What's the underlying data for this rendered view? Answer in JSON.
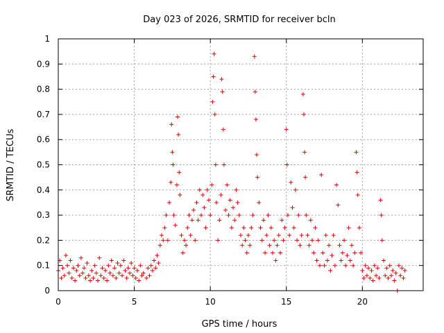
{
  "chart_data": {
    "type": "scatter",
    "title": "Day 023 of 2026, SRMTID for receiver bcln",
    "xlabel": "GPS time / hours",
    "ylabel": "SRMTID / TECUs",
    "xlim": [
      0,
      24
    ],
    "ylim": [
      0,
      1
    ],
    "xticks": [
      0,
      5,
      10,
      15,
      20
    ],
    "yticks": [
      0,
      0.1,
      0.2,
      0.3,
      0.4,
      0.5,
      0.6,
      0.7,
      0.8,
      0.9,
      1
    ],
    "ytick_labels": [
      "0",
      "0.1",
      "0.2",
      "0.3",
      "0.4",
      "0.5",
      "0.6",
      "0.7",
      "0.8",
      "0.9",
      "1"
    ],
    "grid": true,
    "marker": "+",
    "color": "#e00000",
    "series": [
      {
        "name": "SRMTID",
        "points": [
          [
            0.0,
            0.08
          ],
          [
            0.1,
            0.12
          ],
          [
            0.2,
            0.05
          ],
          [
            0.3,
            0.09
          ],
          [
            0.4,
            0.06
          ],
          [
            0.5,
            0.14
          ],
          [
            0.6,
            0.1
          ],
          [
            0.7,
            0.07
          ],
          [
            0.8,
            0.12
          ],
          [
            0.9,
            0.05
          ],
          [
            1.0,
            0.09
          ],
          [
            1.1,
            0.04
          ],
          [
            1.2,
            0.08
          ],
          [
            1.3,
            0.1
          ],
          [
            1.4,
            0.06
          ],
          [
            1.5,
            0.13
          ],
          [
            1.6,
            0.07
          ],
          [
            1.7,
            0.09
          ],
          [
            1.8,
            0.05
          ],
          [
            1.9,
            0.11
          ],
          [
            2.0,
            0.06
          ],
          [
            2.1,
            0.04
          ],
          [
            2.2,
            0.08
          ],
          [
            2.3,
            0.05
          ],
          [
            2.4,
            0.1
          ],
          [
            2.5,
            0.07
          ],
          [
            2.6,
            0.04
          ],
          [
            2.7,
            0.13
          ],
          [
            2.8,
            0.06
          ],
          [
            2.9,
            0.09
          ],
          [
            3.0,
            0.05
          ],
          [
            3.1,
            0.08
          ],
          [
            3.2,
            0.04
          ],
          [
            3.3,
            0.1
          ],
          [
            3.4,
            0.07
          ],
          [
            3.5,
            0.12
          ],
          [
            3.6,
            0.06
          ],
          [
            3.7,
            0.09
          ],
          [
            3.8,
            0.05
          ],
          [
            3.9,
            0.11
          ],
          [
            4.0,
            0.07
          ],
          [
            4.1,
            0.1
          ],
          [
            4.2,
            0.06
          ],
          [
            4.3,
            0.12
          ],
          [
            4.4,
            0.08
          ],
          [
            4.5,
            0.05
          ],
          [
            4.6,
            0.09
          ],
          [
            4.7,
            0.07
          ],
          [
            4.8,
            0.11
          ],
          [
            4.9,
            0.06
          ],
          [
            5.0,
            0.09
          ],
          [
            5.1,
            0.05
          ],
          [
            5.2,
            0.08
          ],
          [
            5.3,
            0.04
          ],
          [
            5.4,
            0.1
          ],
          [
            5.5,
            0.06
          ],
          [
            5.6,
            0.07
          ],
          [
            5.8,
            0.05
          ],
          [
            5.9,
            0.09
          ],
          [
            6.0,
            0.06
          ],
          [
            6.1,
            0.1
          ],
          [
            6.2,
            0.08
          ],
          [
            6.3,
            0.12
          ],
          [
            6.4,
            0.09
          ],
          [
            6.5,
            0.14
          ],
          [
            6.6,
            0.11
          ],
          [
            6.7,
            0.18
          ],
          [
            6.8,
            0.22
          ],
          [
            6.9,
            0.2
          ],
          [
            7.0,
            0.25
          ],
          [
            7.1,
            0.3
          ],
          [
            7.2,
            0.2
          ],
          [
            7.3,
            0.35
          ],
          [
            7.4,
            0.43
          ],
          [
            7.45,
            0.66
          ],
          [
            7.5,
            0.55
          ],
          [
            7.55,
            0.5
          ],
          [
            7.6,
            0.3
          ],
          [
            7.7,
            0.26
          ],
          [
            7.8,
            0.42
          ],
          [
            7.85,
            0.69
          ],
          [
            7.9,
            0.62
          ],
          [
            7.95,
            0.47
          ],
          [
            8.0,
            0.38
          ],
          [
            8.1,
            0.22
          ],
          [
            8.2,
            0.15
          ],
          [
            8.3,
            0.2
          ],
          [
            8.4,
            0.18
          ],
          [
            8.5,
            0.25
          ],
          [
            8.6,
            0.3
          ],
          [
            8.7,
            0.22
          ],
          [
            8.8,
            0.28
          ],
          [
            8.9,
            0.32
          ],
          [
            9.0,
            0.2
          ],
          [
            9.1,
            0.35
          ],
          [
            9.2,
            0.28
          ],
          [
            9.3,
            0.4
          ],
          [
            9.4,
            0.3
          ],
          [
            9.5,
            0.38
          ],
          [
            9.6,
            0.33
          ],
          [
            9.7,
            0.25
          ],
          [
            9.8,
            0.4
          ],
          [
            9.9,
            0.36
          ],
          [
            10.0,
            0.3
          ],
          [
            10.1,
            0.42
          ],
          [
            10.15,
            0.75
          ],
          [
            10.2,
            0.85
          ],
          [
            10.25,
            0.94
          ],
          [
            10.3,
            0.7
          ],
          [
            10.35,
            0.5
          ],
          [
            10.4,
            0.35
          ],
          [
            10.5,
            0.2
          ],
          [
            10.6,
            0.28
          ],
          [
            10.7,
            0.38
          ],
          [
            10.75,
            0.84
          ],
          [
            10.8,
            0.79
          ],
          [
            10.85,
            0.64
          ],
          [
            10.9,
            0.5
          ],
          [
            11.0,
            0.32
          ],
          [
            11.1,
            0.42
          ],
          [
            11.2,
            0.3
          ],
          [
            11.3,
            0.36
          ],
          [
            11.4,
            0.25
          ],
          [
            11.5,
            0.33
          ],
          [
            11.6,
            0.28
          ],
          [
            11.7,
            0.4
          ],
          [
            11.8,
            0.35
          ],
          [
            11.9,
            0.3
          ],
          [
            12.0,
            0.22
          ],
          [
            12.1,
            0.18
          ],
          [
            12.2,
            0.25
          ],
          [
            12.3,
            0.2
          ],
          [
            12.4,
            0.15
          ],
          [
            12.5,
            0.22
          ],
          [
            12.6,
            0.18
          ],
          [
            12.7,
            0.25
          ],
          [
            12.8,
            0.3
          ],
          [
            12.9,
            0.93
          ],
          [
            12.95,
            0.79
          ],
          [
            13.0,
            0.68
          ],
          [
            13.05,
            0.54
          ],
          [
            13.1,
            0.45
          ],
          [
            13.2,
            0.35
          ],
          [
            13.3,
            0.25
          ],
          [
            13.4,
            0.2
          ],
          [
            13.5,
            0.28
          ],
          [
            13.6,
            0.15
          ],
          [
            13.7,
            0.22
          ],
          [
            13.8,
            0.3
          ],
          [
            13.9,
            0.18
          ],
          [
            14.0,
            0.25
          ],
          [
            14.1,
            0.15
          ],
          [
            14.2,
            0.2
          ],
          [
            14.3,
            0.12
          ],
          [
            14.4,
            0.18
          ],
          [
            14.5,
            0.22
          ],
          [
            14.6,
            0.15
          ],
          [
            14.7,
            0.28
          ],
          [
            14.8,
            0.2
          ],
          [
            14.9,
            0.25
          ],
          [
            15.0,
            0.64
          ],
          [
            15.05,
            0.5
          ],
          [
            15.1,
            0.3
          ],
          [
            15.2,
            0.22
          ],
          [
            15.3,
            0.43
          ],
          [
            15.4,
            0.33
          ],
          [
            15.5,
            0.25
          ],
          [
            15.6,
            0.4
          ],
          [
            15.7,
            0.2
          ],
          [
            15.8,
            0.3
          ],
          [
            15.9,
            0.18
          ],
          [
            16.0,
            0.22
          ],
          [
            16.1,
            0.78
          ],
          [
            16.15,
            0.7
          ],
          [
            16.2,
            0.55
          ],
          [
            16.25,
            0.45
          ],
          [
            16.3,
            0.3
          ],
          [
            16.4,
            0.22
          ],
          [
            16.5,
            0.18
          ],
          [
            16.6,
            0.28
          ],
          [
            16.7,
            0.2
          ],
          [
            16.8,
            0.15
          ],
          [
            16.9,
            0.25
          ],
          [
            17.0,
            0.12
          ],
          [
            17.1,
            0.2
          ],
          [
            17.2,
            0.1
          ],
          [
            17.3,
            0.46
          ],
          [
            17.4,
            0.15
          ],
          [
            17.5,
            0.1
          ],
          [
            17.6,
            0.22
          ],
          [
            17.7,
            0.12
          ],
          [
            17.8,
            0.18
          ],
          [
            17.9,
            0.08
          ],
          [
            18.0,
            0.14
          ],
          [
            18.1,
            0.22
          ],
          [
            18.2,
            0.1
          ],
          [
            18.3,
            0.42
          ],
          [
            18.4,
            0.34
          ],
          [
            18.5,
            0.18
          ],
          [
            18.6,
            0.12
          ],
          [
            18.7,
            0.15
          ],
          [
            18.8,
            0.2
          ],
          [
            18.9,
            0.1
          ],
          [
            19.0,
            0.14
          ],
          [
            19.1,
            0.25
          ],
          [
            19.2,
            0.12
          ],
          [
            19.3,
            0.18
          ],
          [
            19.4,
            0.1
          ],
          [
            19.5,
            0.15
          ],
          [
            19.6,
            0.55
          ],
          [
            19.65,
            0.47
          ],
          [
            19.7,
            0.38
          ],
          [
            19.8,
            0.25
          ],
          [
            19.9,
            0.15
          ],
          [
            20.0,
            0.08
          ],
          [
            20.1,
            0.05
          ],
          [
            20.2,
            0.1
          ],
          [
            20.3,
            0.06
          ],
          [
            20.4,
            0.09
          ],
          [
            20.5,
            0.05
          ],
          [
            20.6,
            0.08
          ],
          [
            20.7,
            0.04
          ],
          [
            20.8,
            0.1
          ],
          [
            20.9,
            0.06
          ],
          [
            21.0,
            0.09
          ],
          [
            21.1,
            0.05
          ],
          [
            21.2,
            0.36
          ],
          [
            21.25,
            0.3
          ],
          [
            21.3,
            0.2
          ],
          [
            21.4,
            0.12
          ],
          [
            21.5,
            0.06
          ],
          [
            21.6,
            0.09
          ],
          [
            21.7,
            0.05
          ],
          [
            21.8,
            0.1
          ],
          [
            21.9,
            0.06
          ],
          [
            22.0,
            0.08
          ],
          [
            22.1,
            0.04
          ],
          [
            22.2,
            0.07
          ],
          [
            22.3,
            0.0
          ],
          [
            22.4,
            0.1
          ],
          [
            22.5,
            0.06
          ],
          [
            22.6,
            0.09
          ],
          [
            22.7,
            0.05
          ],
          [
            22.8,
            0.08
          ]
        ]
      }
    ]
  }
}
